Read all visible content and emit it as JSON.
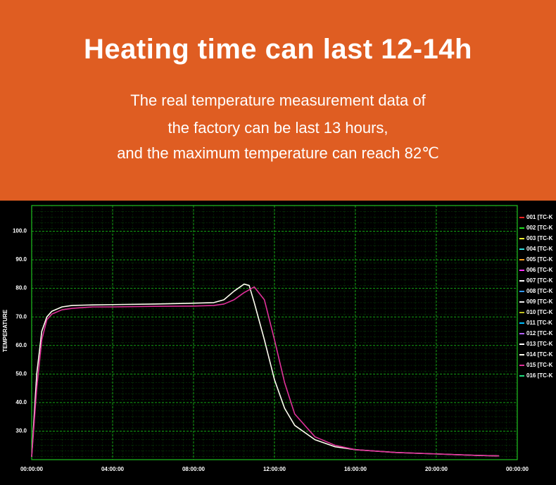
{
  "header": {
    "title": "Heating time can last 12-14h",
    "subtitle": [
      "The real temperature measurement data of",
      "the factory can be last 13 hours,",
      "and the maximum temperature can reach 82℃"
    ]
  },
  "chart_data": {
    "type": "line",
    "ylabel": "TEMPERATURE",
    "x": [
      0,
      0.25,
      0.5,
      0.75,
      1,
      1.5,
      2,
      3,
      4,
      6,
      8,
      9,
      9.5,
      10,
      10.5,
      10.75,
      11,
      11.5,
      12,
      12.5,
      13,
      14,
      15,
      16,
      18,
      20,
      22,
      23.1
    ],
    "xlim": [
      0,
      24
    ],
    "xticks": [
      {
        "value": 0,
        "label": "00:00:00"
      },
      {
        "value": 4,
        "label": "04:00:00"
      },
      {
        "value": 8,
        "label": "08:00:00"
      },
      {
        "value": 12,
        "label": "12:00:00"
      },
      {
        "value": 16,
        "label": "16:00:00"
      },
      {
        "value": 20,
        "label": "20:00:00"
      },
      {
        "value": 24,
        "label": "00:00:00"
      }
    ],
    "ylim": [
      20,
      109
    ],
    "yticks": [
      {
        "value": 30,
        "label": "30.0"
      },
      {
        "value": 40,
        "label": "40.0"
      },
      {
        "value": 50,
        "label": "50.0"
      },
      {
        "value": 60,
        "label": "60.0"
      },
      {
        "value": 70,
        "label": "70.0"
      },
      {
        "value": 80,
        "label": "80.0"
      },
      {
        "value": 90,
        "label": "90.0"
      },
      {
        "value": 100,
        "label": "100.0"
      }
    ],
    "grid": true,
    "legend": "right",
    "series": [
      {
        "name": "001 [TC-K",
        "color": "#ff2020",
        "values": [
          null,
          null,
          null,
          null,
          null,
          null,
          null,
          null,
          null,
          null,
          null,
          null,
          null,
          null,
          null,
          null,
          null,
          null,
          null,
          null,
          null,
          null,
          null,
          null,
          null,
          null,
          null,
          null
        ]
      },
      {
        "name": "002 [TC-K",
        "color": "#20e020",
        "values": [
          null,
          null,
          null,
          null,
          null,
          null,
          null,
          null,
          null,
          null,
          null,
          null,
          null,
          null,
          null,
          null,
          null,
          null,
          null,
          null,
          null,
          null,
          null,
          null,
          null,
          null,
          null,
          null
        ]
      },
      {
        "name": "003 [TC-K",
        "color": "#ffff30",
        "values": [
          null,
          null,
          null,
          null,
          null,
          null,
          null,
          null,
          null,
          null,
          null,
          null,
          null,
          null,
          null,
          null,
          null,
          null,
          null,
          null,
          null,
          null,
          null,
          null,
          null,
          null,
          null,
          null
        ]
      },
      {
        "name": "004 [TC-K",
        "color": "#30e0e0",
        "values": [
          null,
          null,
          null,
          null,
          null,
          null,
          null,
          null,
          null,
          null,
          null,
          null,
          null,
          null,
          null,
          null,
          null,
          null,
          null,
          null,
          null,
          null,
          null,
          null,
          null,
          null,
          null,
          null
        ]
      },
      {
        "name": "005 [TC-K",
        "color": "#ffa020",
        "values": [
          null,
          null,
          null,
          null,
          null,
          null,
          null,
          null,
          null,
          null,
          null,
          null,
          null,
          null,
          null,
          null,
          null,
          null,
          null,
          null,
          null,
          null,
          null,
          null,
          null,
          null,
          null,
          null
        ]
      },
      {
        "name": "006 [TC-K",
        "color": "#ff30ff",
        "values": [
          null,
          null,
          null,
          null,
          null,
          null,
          null,
          null,
          null,
          null,
          null,
          null,
          null,
          null,
          null,
          null,
          null,
          null,
          null,
          null,
          null,
          null,
          null,
          null,
          null,
          null,
          null,
          null
        ]
      },
      {
        "name": "007 [TC-K",
        "color": "#ffffff",
        "values": [
          null,
          null,
          null,
          null,
          null,
          null,
          null,
          null,
          null,
          null,
          null,
          null,
          null,
          null,
          null,
          null,
          null,
          null,
          null,
          null,
          null,
          null,
          null,
          null,
          null,
          null,
          null,
          null
        ]
      },
      {
        "name": "008 [TC-K",
        "color": "#3399ff",
        "values": [
          null,
          null,
          null,
          null,
          null,
          null,
          null,
          null,
          null,
          null,
          null,
          null,
          null,
          null,
          null,
          null,
          null,
          null,
          null,
          null,
          null,
          null,
          null,
          null,
          null,
          null,
          null,
          null
        ]
      },
      {
        "name": "009 [TC-K",
        "color": "#f0f0f0",
        "values": [
          null,
          null,
          null,
          null,
          null,
          null,
          null,
          null,
          null,
          null,
          null,
          null,
          null,
          null,
          null,
          null,
          null,
          null,
          null,
          null,
          null,
          null,
          null,
          null,
          null,
          null,
          null,
          null
        ]
      },
      {
        "name": "010 [TC-K",
        "color": "#c0c020",
        "values": [
          null,
          null,
          null,
          null,
          null,
          null,
          null,
          null,
          null,
          null,
          null,
          null,
          null,
          null,
          null,
          null,
          null,
          null,
          null,
          null,
          null,
          null,
          null,
          null,
          null,
          null,
          null,
          null
        ]
      },
      {
        "name": "011 [TC-K",
        "color": "#00bfff",
        "values": [
          null,
          null,
          null,
          null,
          null,
          null,
          null,
          null,
          null,
          null,
          null,
          null,
          null,
          null,
          null,
          null,
          null,
          null,
          null,
          null,
          null,
          null,
          null,
          null,
          null,
          null,
          null,
          null
        ]
      },
      {
        "name": "012 [TC-K",
        "color": "#b060ff",
        "values": [
          null,
          null,
          null,
          null,
          null,
          null,
          null,
          null,
          null,
          null,
          null,
          null,
          null,
          null,
          null,
          null,
          null,
          null,
          null,
          null,
          null,
          null,
          null,
          null,
          null,
          null,
          null,
          null
        ]
      },
      {
        "name": "013 [TC-K",
        "color": "#ffffff",
        "values": [
          null,
          null,
          null,
          null,
          null,
          null,
          null,
          null,
          null,
          null,
          null,
          null,
          null,
          null,
          null,
          null,
          null,
          null,
          null,
          null,
          null,
          null,
          null,
          null,
          null,
          null,
          null,
          null
        ]
      },
      {
        "name": "014 [TC-K",
        "color": "#fffff0",
        "values": [
          21,
          50,
          65,
          70,
          72,
          73.5,
          74,
          74.2,
          74.3,
          74.5,
          74.8,
          75,
          76,
          79,
          81.5,
          81,
          75,
          62,
          48,
          38,
          32,
          27,
          24.5,
          23.5,
          22.5,
          22,
          21.5,
          21.3
        ]
      },
      {
        "name": "015 [TC-K",
        "color": "#e0309a",
        "values": [
          21,
          45,
          62,
          69,
          71,
          72.5,
          73,
          73.5,
          73.5,
          73.7,
          73.8,
          74,
          74.5,
          76,
          78.5,
          79.5,
          80.5,
          76,
          62,
          47,
          36,
          28,
          25,
          23.5,
          22.5,
          22,
          21.5,
          21.3
        ]
      },
      {
        "name": "016 [TC-K",
        "color": "#20e080",
        "values": [
          null,
          null,
          null,
          null,
          null,
          null,
          null,
          null,
          null,
          null,
          null,
          null,
          null,
          null,
          null,
          null,
          null,
          null,
          null,
          null,
          null,
          null,
          null,
          null,
          null,
          null,
          null,
          null
        ]
      }
    ]
  }
}
